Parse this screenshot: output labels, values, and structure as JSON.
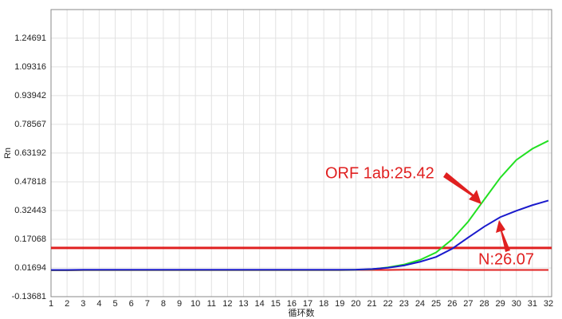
{
  "chart_data": {
    "type": "line",
    "x_label": "循环数",
    "y_label": "Rn",
    "x": [
      1,
      2,
      3,
      4,
      5,
      6,
      7,
      8,
      9,
      10,
      11,
      12,
      13,
      14,
      15,
      16,
      17,
      18,
      19,
      20,
      21,
      22,
      23,
      24,
      25,
      26,
      27,
      28,
      29,
      30,
      31,
      32
    ],
    "series": [
      {
        "color": "#e02020",
        "values": [
          0.004,
          0.004,
          0.005,
          0.005,
          0.005,
          0.005,
          0.005,
          0.005,
          0.005,
          0.005,
          0.005,
          0.005,
          0.005,
          0.005,
          0.005,
          0.005,
          0.005,
          0.005,
          0.005,
          0.006,
          0.006,
          0.006,
          0.007,
          0.007,
          0.007,
          0.007,
          0.006,
          0.006,
          0.006,
          0.006,
          0.006,
          0.006
        ]
      },
      {
        "color": "#22e022",
        "values": [
          0.005,
          0.005,
          0.006,
          0.006,
          0.006,
          0.006,
          0.006,
          0.006,
          0.006,
          0.006,
          0.006,
          0.006,
          0.006,
          0.006,
          0.006,
          0.006,
          0.006,
          0.006,
          0.006,
          0.007,
          0.01,
          0.02,
          0.035,
          0.06,
          0.1,
          0.17,
          0.265,
          0.383,
          0.5,
          0.595,
          0.655,
          0.698
        ]
      },
      {
        "color": "#1a1acc",
        "values": [
          0.006,
          0.006,
          0.007,
          0.007,
          0.007,
          0.007,
          0.007,
          0.007,
          0.007,
          0.007,
          0.007,
          0.007,
          0.007,
          0.007,
          0.007,
          0.007,
          0.007,
          0.007,
          0.007,
          0.008,
          0.011,
          0.018,
          0.03,
          0.05,
          0.076,
          0.12,
          0.18,
          0.238,
          0.289,
          0.323,
          0.353,
          0.378
        ]
      }
    ],
    "threshold": {
      "value": 0.124,
      "color": "#e02020"
    },
    "annotations": [
      "ORF 1ab:25.42",
      "N:26.07"
    ],
    "xlim": [
      1,
      32.2
    ],
    "xticks": [
      1,
      2,
      3,
      4,
      5,
      6,
      7,
      8,
      9,
      10,
      11,
      12,
      13,
      14,
      15,
      16,
      17,
      18,
      19,
      20,
      21,
      22,
      23,
      24,
      25,
      26,
      27,
      28,
      29,
      30,
      31,
      32
    ],
    "ylim": [
      -0.13681,
      1.4
    ],
    "yticks": [
      -0.13681,
      0.01694,
      0.17068,
      0.32443,
      0.47818,
      0.63192,
      0.78567,
      0.93942,
      1.09316,
      1.24691
    ],
    "grid": true
  }
}
